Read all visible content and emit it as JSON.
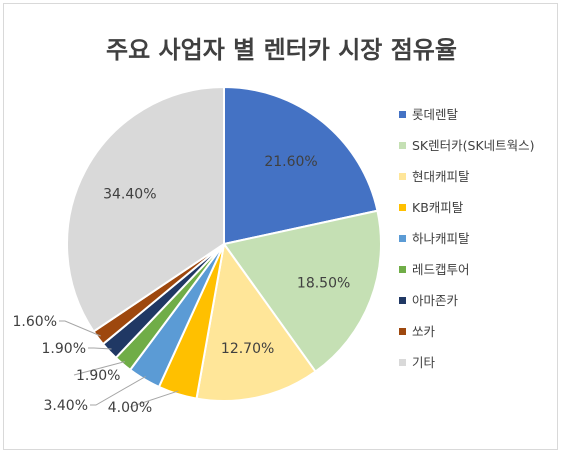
{
  "chart_data": {
    "type": "pie",
    "title": "주요 사업자 별 렌터카 시장 점유율",
    "legend_position": "right",
    "slices": [
      {
        "label": "롯데렌탈",
        "value": 21.6,
        "display": "21.60%",
        "color": "#4472c4"
      },
      {
        "label": "SK렌터카(SK네트웍스)",
        "value": 18.5,
        "display": "18.50%",
        "color": "#c5e0b4"
      },
      {
        "label": "현대캐피탈",
        "value": 12.7,
        "display": "12.70%",
        "color": "#ffe699"
      },
      {
        "label": "KB캐피탈",
        "value": 4.0,
        "display": "4.00%",
        "color": "#ffc000"
      },
      {
        "label": "하나캐피탈",
        "value": 3.4,
        "display": "3.40%",
        "color": "#5b9bd5"
      },
      {
        "label": "레드캡투어",
        "value": 1.9,
        "display": "1.90%",
        "color": "#70ad47"
      },
      {
        "label": "아마존카",
        "value": 1.9,
        "display": "1.90%",
        "color": "#203864"
      },
      {
        "label": "쏘카",
        "value": 1.6,
        "display": "1.60%",
        "color": "#9e480e"
      },
      {
        "label": "기타",
        "value": 34.4,
        "display": "34.40%",
        "color": "#d9d9d9"
      }
    ]
  }
}
